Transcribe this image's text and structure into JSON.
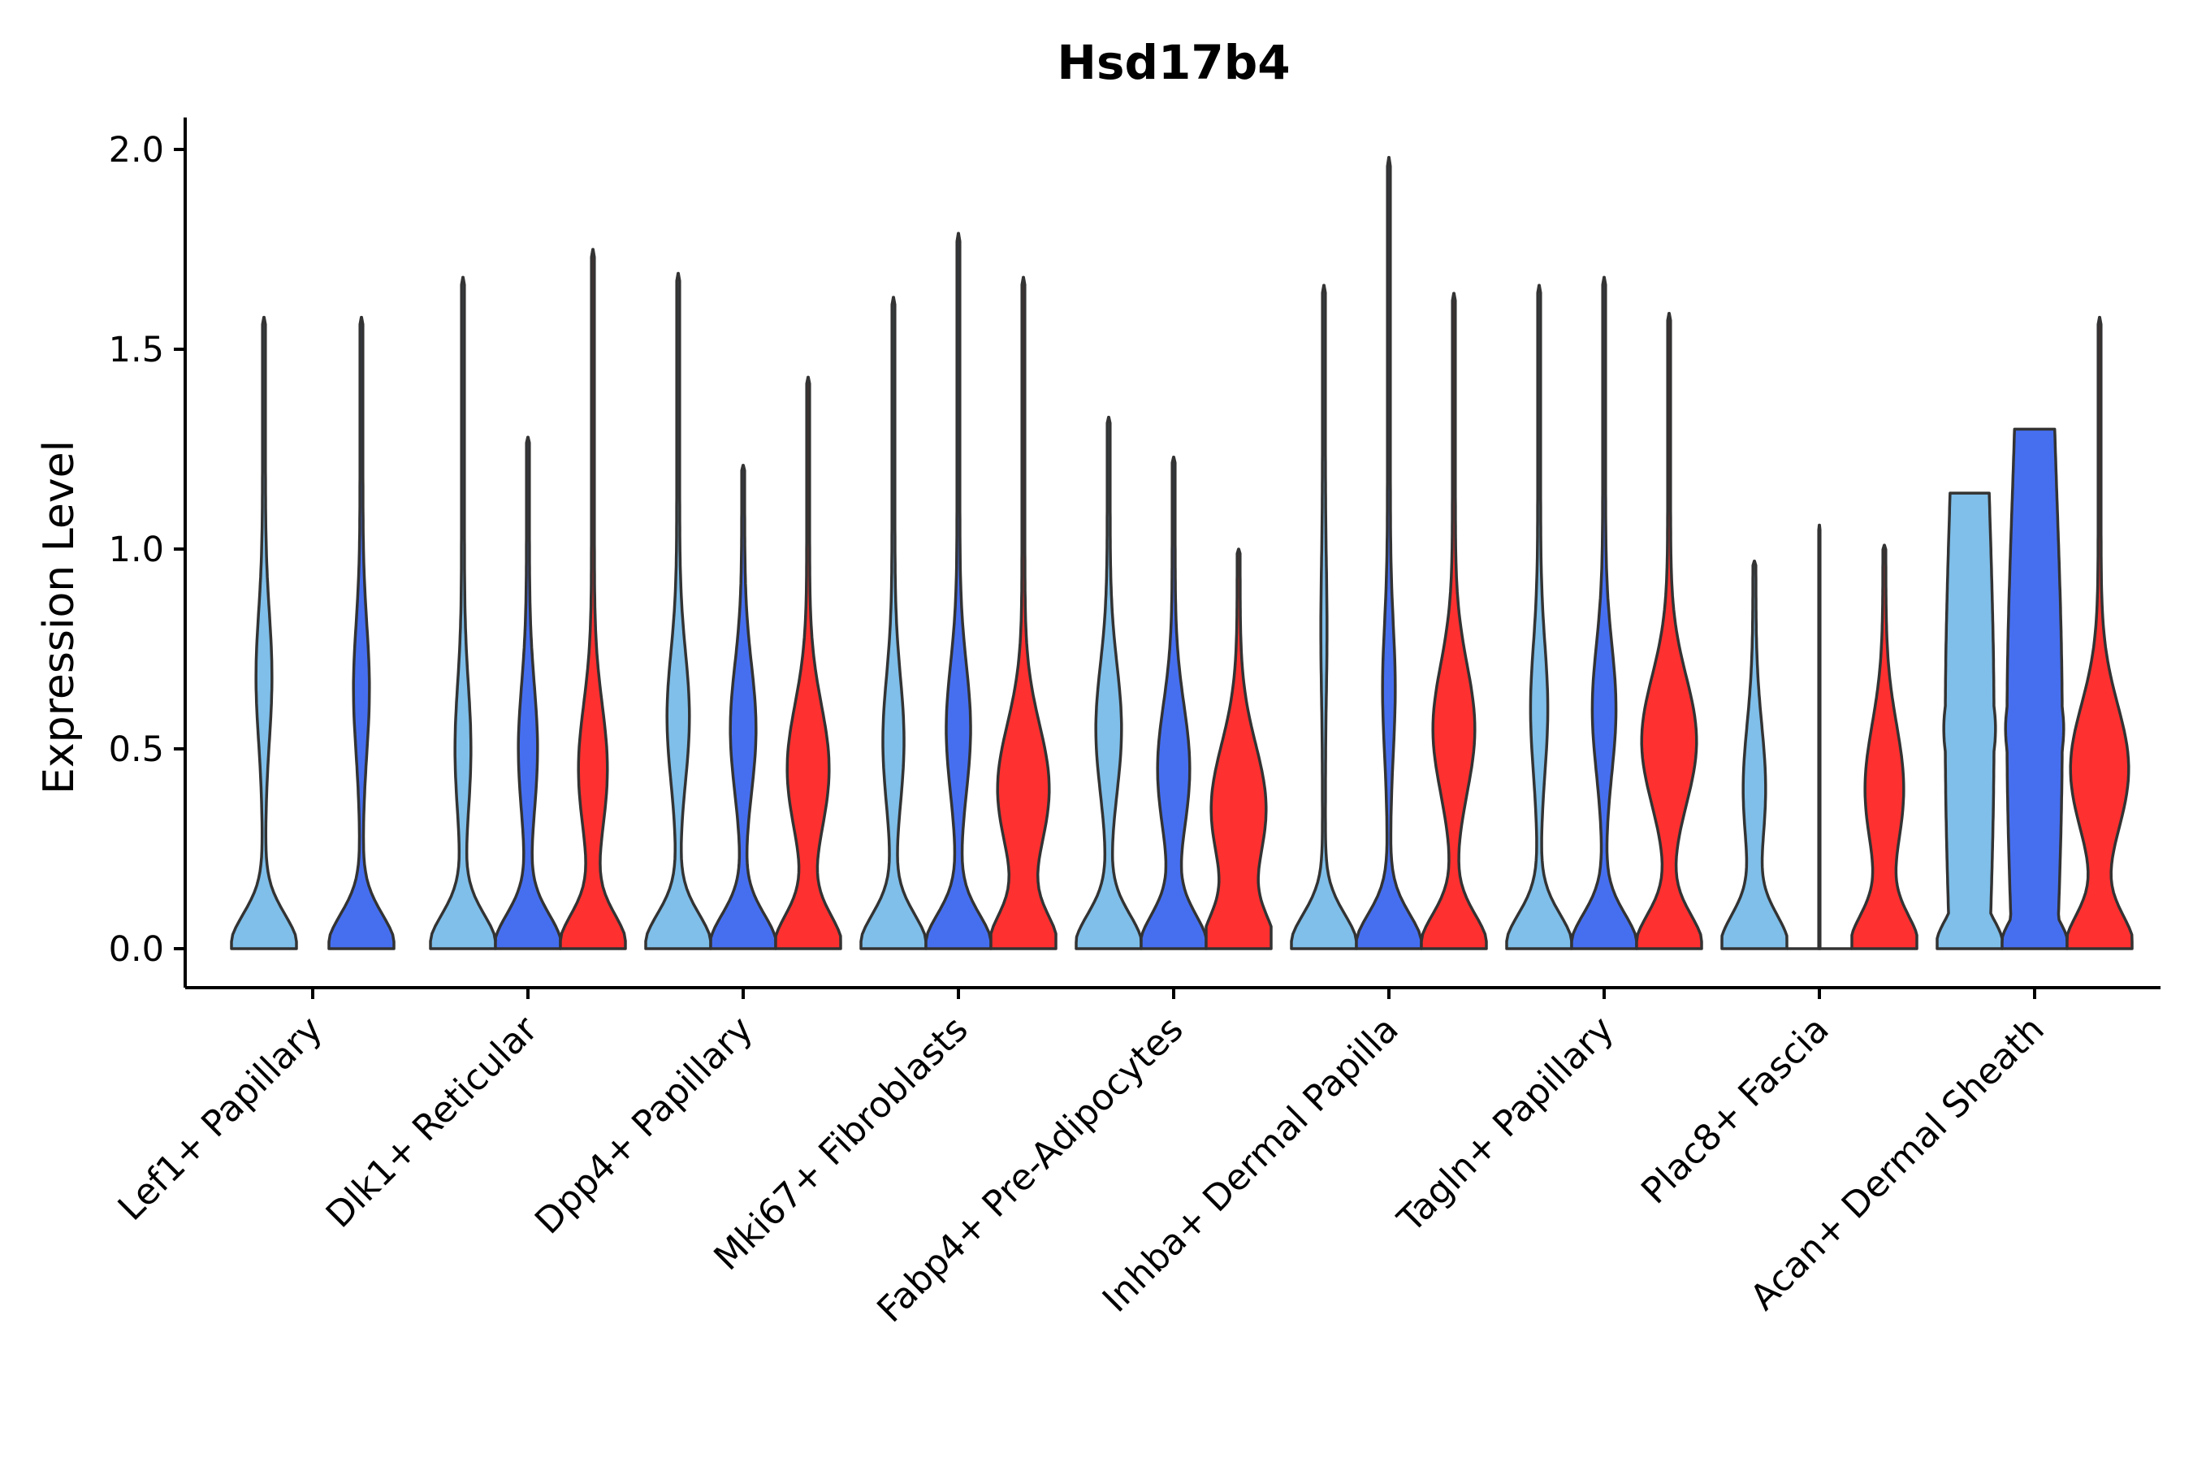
{
  "chart_data": {
    "type": "violin",
    "title": "Hsd17b4",
    "xlabel": "",
    "ylabel": "Expression Level",
    "ylim": [
      -0.1,
      2.08
    ],
    "yticks": [
      0.0,
      0.5,
      1.0,
      1.5,
      2.0
    ],
    "ytick_labels": [
      "0.0",
      "0.5",
      "1.0",
      "1.5",
      "2.0"
    ],
    "grid": false,
    "legend": "none",
    "series_colors": [
      "#7fbfea",
      "#466ff0",
      "#ff3030"
    ],
    "categories": [
      {
        "label": "Lef1+ Papillary",
        "violins": [
          {
            "series": 0,
            "max": 1.58,
            "mode": 0.68,
            "width": 0.52,
            "upper": 0.2
          },
          {
            "series": 1,
            "max": 1.58,
            "mode": 0.65,
            "width": 0.52,
            "upper": 0.2
          }
        ]
      },
      {
        "label": "Dlk1+ Reticular",
        "violins": [
          {
            "series": 0,
            "max": 1.68,
            "mode": 0.5,
            "width": 0.45,
            "upper": 0.2
          },
          {
            "series": 1,
            "max": 1.28,
            "mode": 0.5,
            "width": 0.45,
            "upper": 0.25
          },
          {
            "series": 2,
            "max": 1.75,
            "mode": 0.45,
            "width": 0.45,
            "upper": 0.4
          }
        ]
      },
      {
        "label": "Dpp4+ Papillary",
        "violins": [
          {
            "series": 0,
            "max": 1.69,
            "mode": 0.58,
            "width": 0.45,
            "upper": 0.3
          },
          {
            "series": 1,
            "max": 1.21,
            "mode": 0.55,
            "width": 0.45,
            "upper": 0.35
          },
          {
            "series": 2,
            "max": 1.43,
            "mode": 0.45,
            "width": 0.45,
            "upper": 0.6
          }
        ]
      },
      {
        "label": "Mki67+ Fibroblasts",
        "violins": [
          {
            "series": 0,
            "max": 1.63,
            "mode": 0.52,
            "width": 0.45,
            "upper": 0.28
          },
          {
            "series": 1,
            "max": 1.79,
            "mode": 0.55,
            "width": 0.45,
            "upper": 0.33
          },
          {
            "series": 2,
            "max": 1.68,
            "mode": 0.4,
            "width": 0.45,
            "upper": 0.75
          }
        ]
      },
      {
        "label": "Fabp4+ Pre-Adipocytes",
        "violins": [
          {
            "series": 0,
            "max": 1.33,
            "mode": 0.55,
            "width": 0.45,
            "upper": 0.35
          },
          {
            "series": 1,
            "max": 1.23,
            "mode": 0.45,
            "width": 0.45,
            "upper": 0.45
          },
          {
            "series": 2,
            "max": 1.0,
            "mode": 0.35,
            "width": 0.45,
            "upper": 0.8
          }
        ]
      },
      {
        "label": "Inhba+ Dermal Papilla",
        "violins": [
          {
            "series": 0,
            "max": 1.66,
            "mode": 0.8,
            "width": 0.45,
            "upper": 0.05
          },
          {
            "series": 1,
            "max": 1.98,
            "mode": 0.65,
            "width": 0.45,
            "upper": 0.15
          },
          {
            "series": 2,
            "max": 1.64,
            "mode": 0.55,
            "width": 0.45,
            "upper": 0.6
          }
        ]
      },
      {
        "label": "Tagln+ Papillary",
        "violins": [
          {
            "series": 0,
            "max": 1.66,
            "mode": 0.6,
            "width": 0.45,
            "upper": 0.22
          },
          {
            "series": 1,
            "max": 1.68,
            "mode": 0.6,
            "width": 0.45,
            "upper": 0.32
          },
          {
            "series": 2,
            "max": 1.59,
            "mode": 0.52,
            "width": 0.45,
            "upper": 0.8
          }
        ]
      },
      {
        "label": "Plac8+ Fascia",
        "violins": [
          {
            "series": 0,
            "max": 0.97,
            "mode": 0.4,
            "width": 0.45,
            "upper": 0.3
          },
          {
            "series": 1,
            "max": 1.06,
            "mode": 0.0,
            "width": 0.45,
            "upper": 0.0,
            "flat": true
          },
          {
            "series": 2,
            "max": 1.01,
            "mode": 0.4,
            "width": 0.45,
            "upper": 0.55
          }
        ]
      },
      {
        "label": "Acan+ Dermal Sheath",
        "violins": [
          {
            "series": 0,
            "max": 1.14,
            "mode": 0.55,
            "width": 0.45,
            "upper": 0.75,
            "truncated": true
          },
          {
            "series": 1,
            "max": 1.3,
            "mode": 0.55,
            "width": 0.45,
            "upper": 0.85,
            "truncated": true
          },
          {
            "series": 2,
            "max": 1.58,
            "mode": 0.45,
            "width": 0.45,
            "upper": 0.85
          }
        ]
      }
    ]
  }
}
